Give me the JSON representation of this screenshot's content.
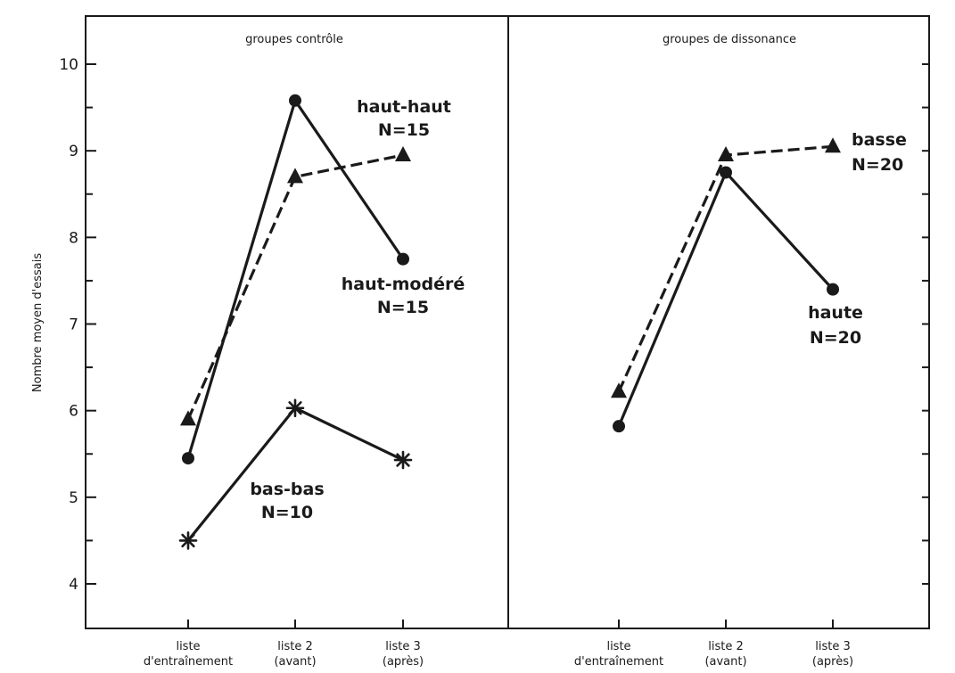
{
  "chart_data": [
    {
      "type": "line",
      "title": "groupes contrôle",
      "ylabel": "Nombre moyen d'essais",
      "xlabel": "",
      "ylim": [
        3.6,
        10.4
      ],
      "yticks": [
        4,
        5,
        6,
        7,
        8,
        9,
        10
      ],
      "categories": [
        [
          "liste",
          "d'entraînement"
        ],
        [
          "liste 2",
          "(avant)"
        ],
        [
          "liste 3",
          "(après)"
        ]
      ],
      "grid": false,
      "series": [
        {
          "label_lines": [
            "haut-haut",
            "N=15"
          ],
          "marker": "triangle",
          "dash": true,
          "values": [
            5.9,
            8.7,
            8.95
          ]
        },
        {
          "label_lines": [
            "haut-modéré",
            "N=15"
          ],
          "marker": "circle",
          "dash": false,
          "values": [
            5.45,
            9.58,
            7.75
          ]
        },
        {
          "label_lines": [
            "bas-bas",
            "N=10"
          ],
          "marker": "asterisk",
          "dash": false,
          "values": [
            4.5,
            6.03,
            5.43
          ]
        }
      ]
    },
    {
      "type": "line",
      "title": "groupes de dissonance",
      "ylabel": "",
      "xlabel": "",
      "ylim": [
        3.6,
        10.4
      ],
      "categories": [
        [
          "liste",
          "d'entraînement"
        ],
        [
          "liste 2",
          "(avant)"
        ],
        [
          "liste 3",
          "(après)"
        ]
      ],
      "grid": false,
      "series": [
        {
          "label_lines": [
            "basse",
            "N=20"
          ],
          "marker": "triangle",
          "dash": true,
          "values": [
            6.22,
            8.95,
            9.05
          ]
        },
        {
          "label_lines": [
            "haute",
            "N=20"
          ],
          "marker": "circle",
          "dash": false,
          "values": [
            5.82,
            8.75,
            7.4
          ]
        }
      ]
    }
  ]
}
